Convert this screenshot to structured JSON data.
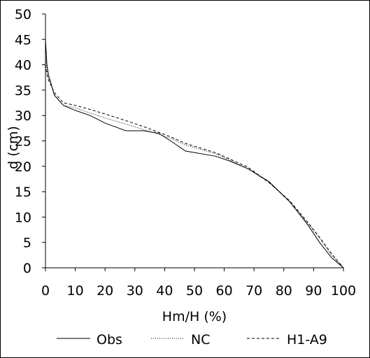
{
  "chart_data": {
    "type": "line",
    "title": "",
    "xlabel": "Hm/H (%)",
    "ylabel": "d (cm)",
    "xlim": [
      0,
      100
    ],
    "ylim": [
      0,
      50
    ],
    "xticks": [
      "0",
      "10",
      "20",
      "30",
      "40",
      "50",
      "60",
      "70",
      "80",
      "90",
      "100"
    ],
    "yticks": [
      "0",
      "5",
      "10",
      "15",
      "20",
      "25",
      "30",
      "35",
      "40",
      "45",
      "50"
    ],
    "grid": false,
    "legend_position": "bottom",
    "series": [
      {
        "name": "Obs",
        "style": "solid",
        "points": [
          [
            0,
            45
          ],
          [
            0.5,
            40
          ],
          [
            1,
            38
          ],
          [
            3,
            34
          ],
          [
            6,
            32
          ],
          [
            10,
            31
          ],
          [
            15,
            30
          ],
          [
            20,
            28.5
          ],
          [
            27,
            27
          ],
          [
            33,
            27
          ],
          [
            38,
            26.5
          ],
          [
            42,
            25
          ],
          [
            47,
            23
          ],
          [
            57,
            22
          ],
          [
            62,
            21
          ],
          [
            68,
            19.5
          ],
          [
            75,
            17
          ],
          [
            82,
            13
          ],
          [
            88,
            8.5
          ],
          [
            92,
            5
          ],
          [
            96,
            2
          ],
          [
            100,
            0
          ]
        ]
      },
      {
        "name": "NC",
        "style": "dotted",
        "points": [
          [
            0,
            42
          ],
          [
            0.5,
            39
          ],
          [
            1,
            37.5
          ],
          [
            3,
            34
          ],
          [
            6,
            32
          ],
          [
            10,
            31.5
          ],
          [
            15,
            30.5
          ],
          [
            20,
            29.5
          ],
          [
            27,
            28.3
          ],
          [
            33,
            27.2
          ],
          [
            38,
            26.3
          ],
          [
            42,
            25.5
          ],
          [
            47,
            24.2
          ],
          [
            57,
            22.5
          ],
          [
            62,
            21.2
          ],
          [
            68,
            19.5
          ],
          [
            75,
            16.8
          ],
          [
            82,
            13
          ],
          [
            88,
            8.8
          ],
          [
            92,
            5.8
          ],
          [
            96,
            2.5
          ],
          [
            100,
            0
          ]
        ]
      },
      {
        "name": "H1-A9",
        "style": "dashed",
        "points": [
          [
            0,
            40
          ],
          [
            0.5,
            38
          ],
          [
            1,
            37
          ],
          [
            3,
            34.5
          ],
          [
            6,
            32.5
          ],
          [
            10,
            32
          ],
          [
            15,
            31.2
          ],
          [
            20,
            30.3
          ],
          [
            27,
            29
          ],
          [
            33,
            27.8
          ],
          [
            38,
            26.7
          ],
          [
            42,
            25.8
          ],
          [
            47,
            24.5
          ],
          [
            57,
            22.7
          ],
          [
            62,
            21.4
          ],
          [
            68,
            19.8
          ],
          [
            75,
            16.8
          ],
          [
            82,
            13.2
          ],
          [
            88,
            9
          ],
          [
            92,
            6
          ],
          [
            96,
            2.8
          ],
          [
            100,
            0
          ]
        ]
      }
    ]
  }
}
